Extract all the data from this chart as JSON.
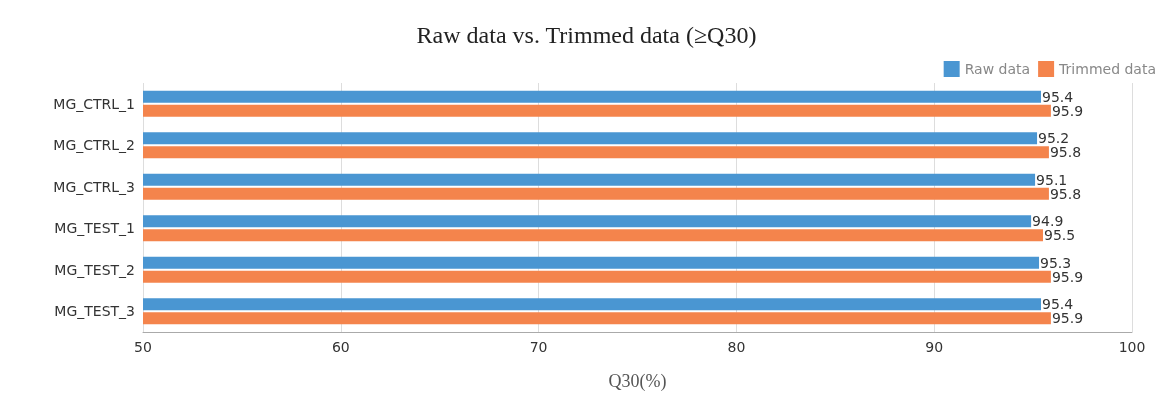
{
  "chart_data": {
    "type": "bar",
    "orientation": "horizontal",
    "title": "Raw data vs. Trimmed data (≥Q30)",
    "xlabel": "Q30(%)",
    "categories": [
      "MG_CTRL_1",
      "MG_CTRL_2",
      "MG_CTRL_3",
      "MG_TEST_1",
      "MG_TEST_2",
      "MG_TEST_3"
    ],
    "series": [
      {
        "name": "Raw data",
        "color": "#4a96d2",
        "values": [
          95.4,
          95.2,
          95.1,
          94.9,
          95.3,
          95.4
        ]
      },
      {
        "name": "Trimmed data",
        "color": "#f4844c",
        "values": [
          95.9,
          95.8,
          95.8,
          95.5,
          95.9,
          95.9
        ]
      }
    ],
    "xlim": [
      50,
      100
    ],
    "xticks": [
      50,
      60,
      70,
      80,
      90,
      100
    ],
    "grid": "x",
    "legend": "top right",
    "data_labels": true
  }
}
